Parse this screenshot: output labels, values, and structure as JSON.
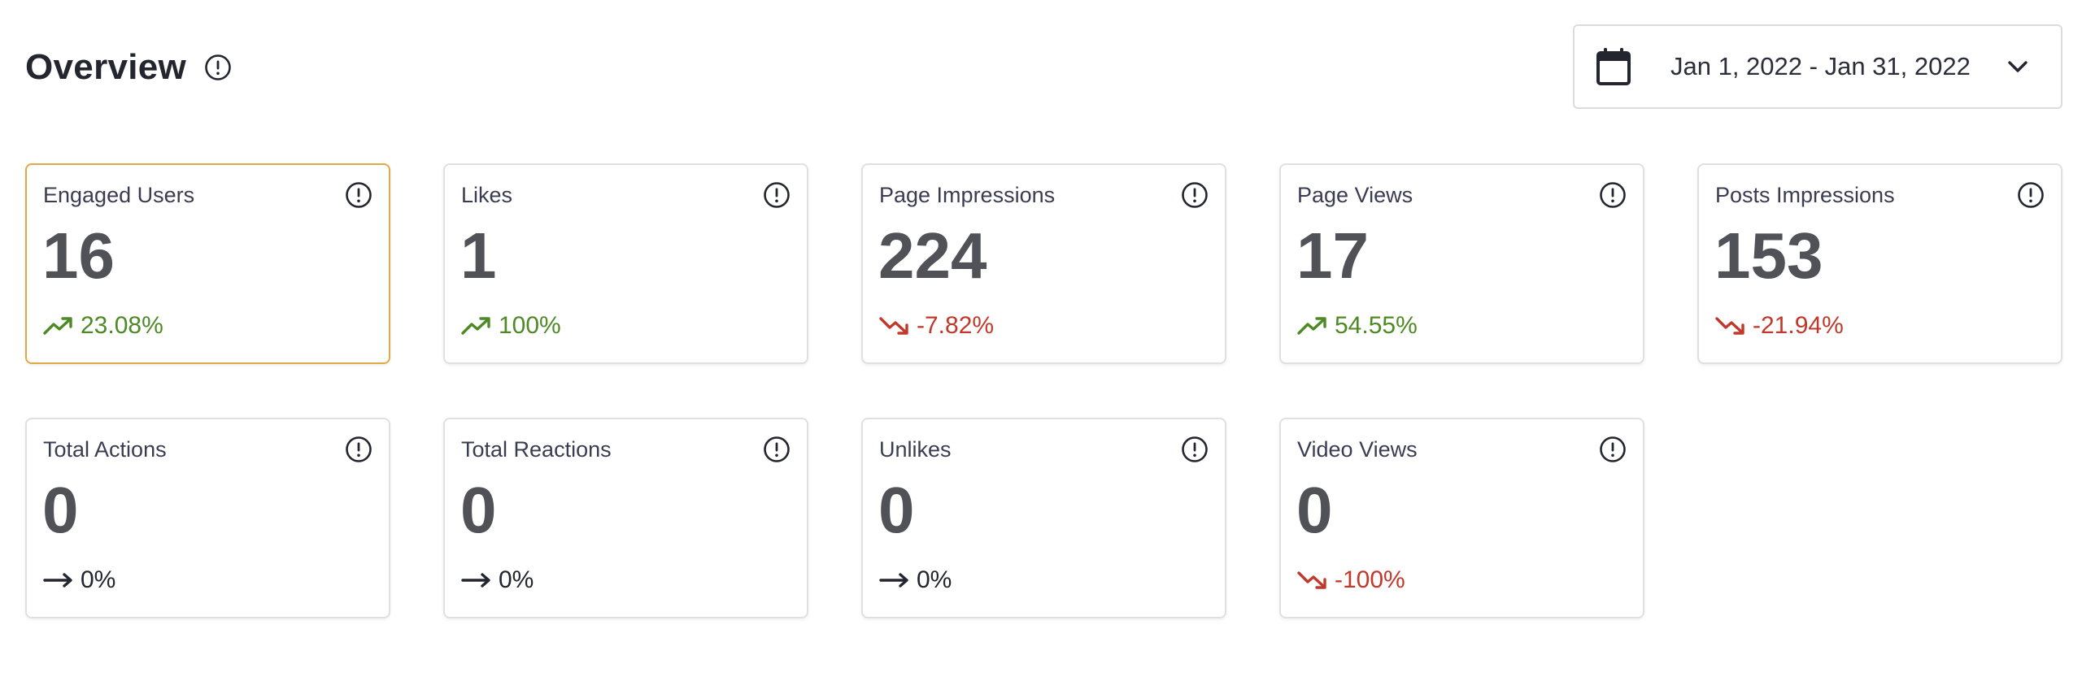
{
  "header": {
    "title": "Overview",
    "info_icon": "info-circle-icon"
  },
  "date_range": {
    "icon": "calendar-icon",
    "value": "Jan 1, 2022 - Jan 31, 2022",
    "dropdown_icon": "chevron-down-icon"
  },
  "colors": {
    "selected_border": "#e2a94a",
    "positive": "#4d8a26",
    "negative": "#c0392b",
    "neutral": "#23252f"
  },
  "metrics": [
    {
      "label": "Engaged Users",
      "value": "16",
      "change": "23.08%",
      "trend": "up",
      "selected": true
    },
    {
      "label": "Likes",
      "value": "1",
      "change": "100%",
      "trend": "up",
      "selected": false
    },
    {
      "label": "Page Impressions",
      "value": "224",
      "change": "-7.82%",
      "trend": "down",
      "selected": false
    },
    {
      "label": "Page Views",
      "value": "17",
      "change": "54.55%",
      "trend": "up",
      "selected": false
    },
    {
      "label": "Posts Impressions",
      "value": "153",
      "change": "-21.94%",
      "trend": "down",
      "selected": false
    },
    {
      "label": "Total Actions",
      "value": "0",
      "change": "0%",
      "trend": "flat",
      "selected": false
    },
    {
      "label": "Total Reactions",
      "value": "0",
      "change": "0%",
      "trend": "flat",
      "selected": false
    },
    {
      "label": "Unlikes",
      "value": "0",
      "change": "0%",
      "trend": "flat",
      "selected": false
    },
    {
      "label": "Video Views",
      "value": "0",
      "change": "-100%",
      "trend": "down",
      "selected": false
    }
  ]
}
